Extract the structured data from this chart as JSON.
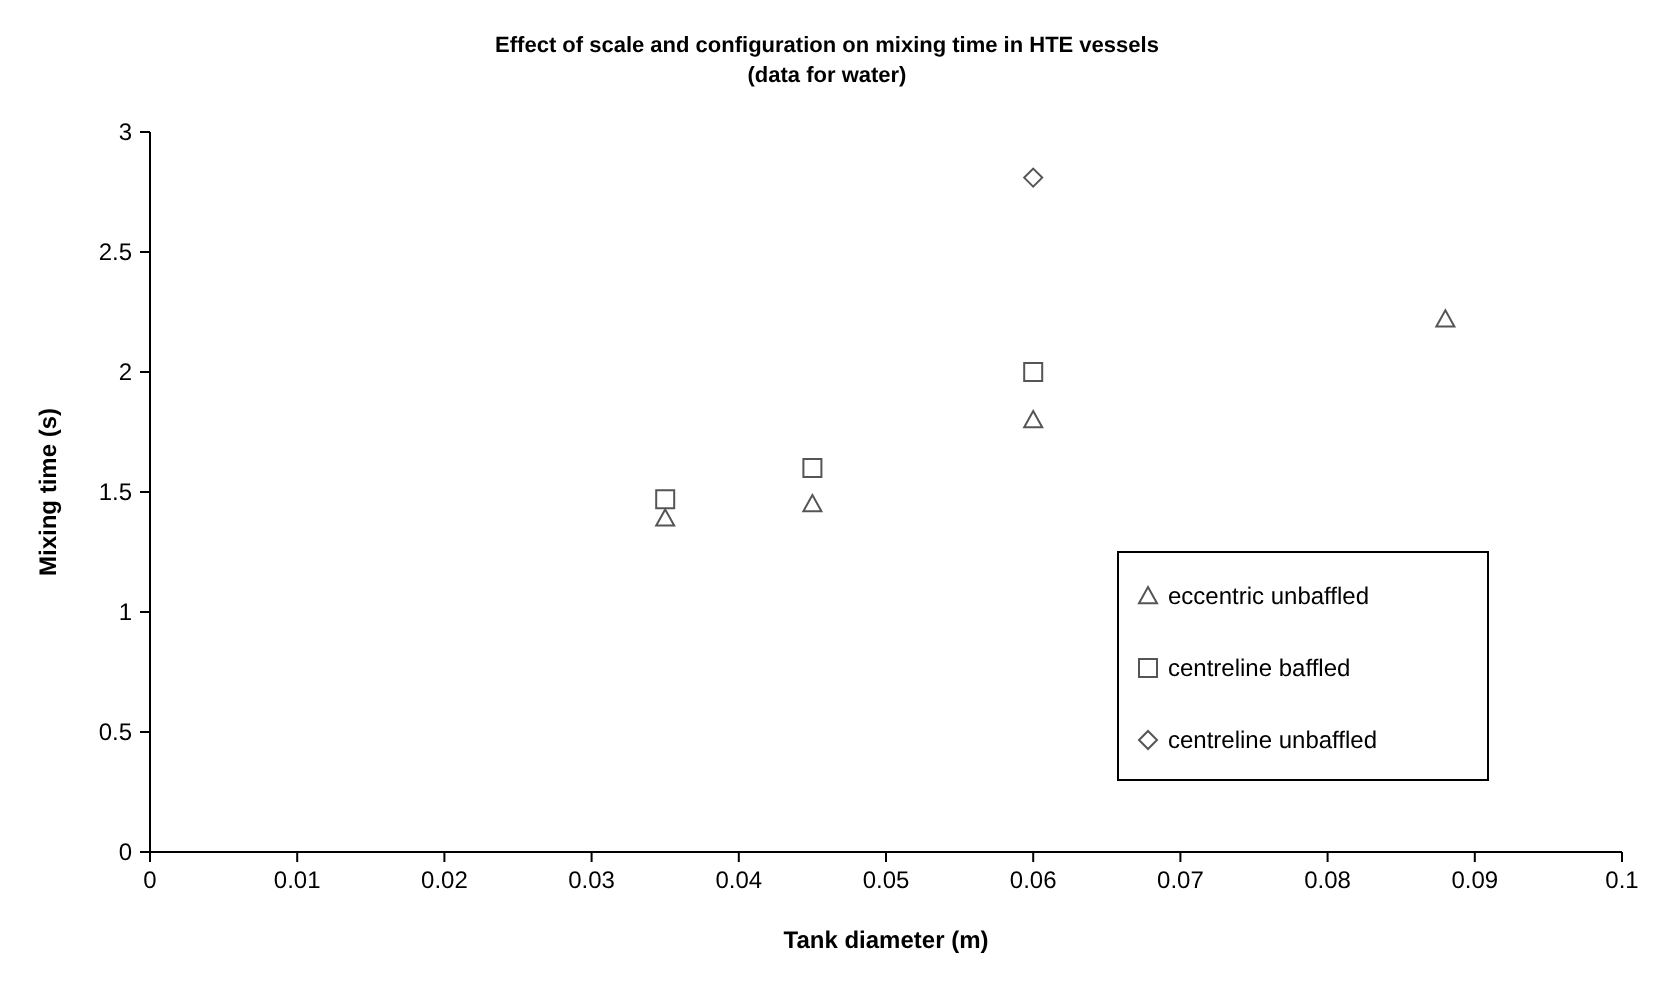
{
  "chart_data": {
    "type": "scatter",
    "title": "Effect of scale and configuration on mixing time in HTE vessels",
    "subtitle": "(data for water)",
    "xlabel": "Tank diameter (m)",
    "ylabel": "Mixing time (s)",
    "xlim": [
      0,
      0.1
    ],
    "xticks": [
      0,
      0.01,
      0.02,
      0.03,
      0.04,
      0.05,
      0.06,
      0.07,
      0.08,
      0.09,
      0.1
    ],
    "ylim": [
      0,
      3
    ],
    "yticks": [
      0,
      0.5,
      1,
      1.5,
      2,
      2.5,
      3
    ],
    "grid": false,
    "legend": "right",
    "series": [
      {
        "name": "eccentric unbaffled",
        "color": "#555555",
        "marker": "triangle",
        "x": [
          0.035,
          0.045,
          0.06,
          0.088
        ],
        "values": [
          1.39,
          1.45,
          1.8,
          2.22
        ]
      },
      {
        "name": "centreline baffled",
        "color": "#555555",
        "marker": "square",
        "x": [
          0.035,
          0.045,
          0.06
        ],
        "values": [
          1.47,
          1.6,
          2.0
        ]
      },
      {
        "name": "centreline unbaffled",
        "color": "#555555",
        "marker": "diamond",
        "x": [
          0.06
        ],
        "values": [
          2.81
        ]
      }
    ]
  }
}
